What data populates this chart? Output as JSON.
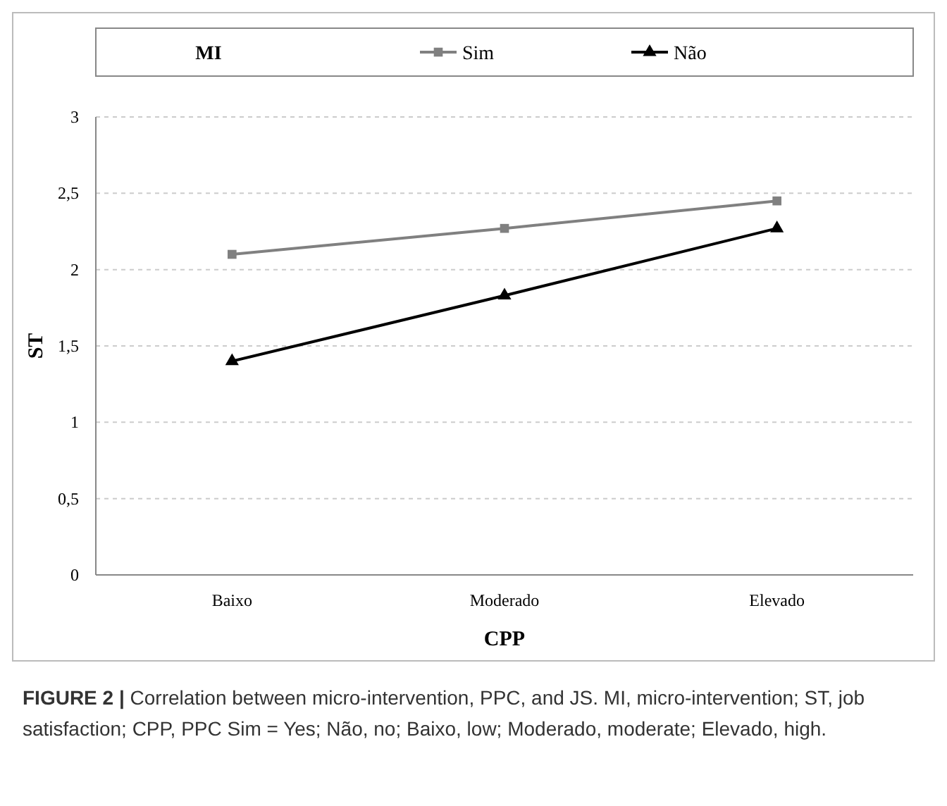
{
  "chart_data": {
    "type": "line",
    "xlabel": "CPP",
    "ylabel": "ST",
    "legend_title": "MI",
    "legend": "top",
    "categories": [
      "Baixo",
      "Moderado",
      "Elevado"
    ],
    "series": [
      {
        "name": "Sim",
        "color": "#808080",
        "marker": "square",
        "values": [
          2.1,
          2.27,
          2.45
        ]
      },
      {
        "name": "Não",
        "color": "#000000",
        "marker": "triangle",
        "values": [
          1.4,
          1.83,
          2.27
        ]
      }
    ],
    "ylim": [
      0,
      3
    ],
    "yticks": [
      0,
      {
        "value": 0.5,
        "label": "0,5"
      },
      1,
      {
        "value": 1.5,
        "label": "1,5"
      },
      2,
      {
        "value": 2.5,
        "label": "2,5"
      },
      3
    ],
    "grid": "y",
    "line_style": "solid",
    "annotations": [
      "FIGURE 2 | Correlation between micro-intervention, PPC, and JS. MI, micro-intervention; ST, job satisfaction; CPP, PPC Sim = Yes; Não, no; Baixo, low; Moderado, moderate; Elevado, high."
    ]
  }
}
